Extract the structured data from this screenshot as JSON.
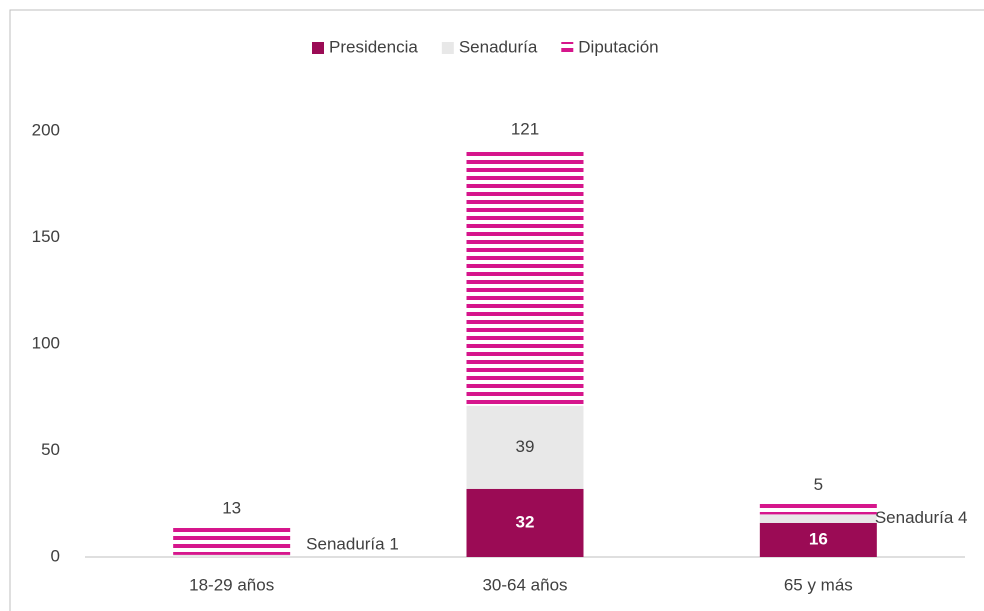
{
  "chart_data": {
    "type": "stacked_bar",
    "categories": [
      "18-29 años",
      "30-64 años",
      "65 y más"
    ],
    "series": [
      {
        "name": "Presidencia",
        "color": "#9b0b55",
        "values": [
          0,
          32,
          16
        ],
        "value_labels": [
          null,
          "32",
          "16"
        ]
      },
      {
        "name": "Senaduría",
        "color": "#e8e8e8",
        "values": [
          1,
          39,
          4
        ],
        "value_labels": [
          "Senaduría 1",
          "39",
          "Senaduría 4"
        ]
      },
      {
        "name": "Diputación",
        "color": "#d6168c",
        "values": [
          13,
          121,
          5
        ],
        "value_labels": [
          "13",
          "121",
          "5"
        ]
      }
    ],
    "ylim": [
      0,
      200
    ],
    "yticks": [
      0,
      50,
      100,
      150,
      200
    ],
    "legend": "top"
  }
}
